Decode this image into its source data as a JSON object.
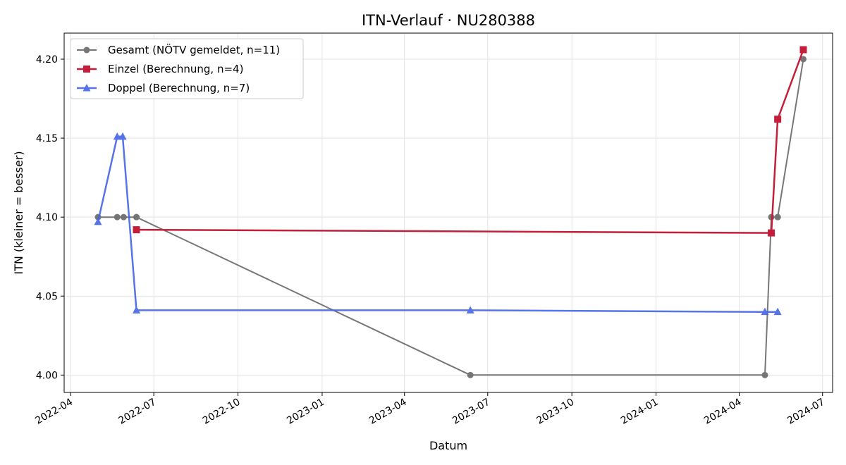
{
  "chart_data": {
    "type": "line",
    "title": "ITN-Verlauf · NU280388",
    "xlabel": "Datum",
    "ylabel": "ITN  (kleiner = besser)",
    "x_type": "date",
    "xlim": [
      "2022-03-25",
      "2024-07-12"
    ],
    "ylim": [
      3.989,
      4.2165
    ],
    "xticks": [
      "2022-04",
      "2022-07",
      "2022-10",
      "2023-01",
      "2023-04",
      "2023-07",
      "2023-10",
      "2024-01",
      "2024-04",
      "2024-07"
    ],
    "yticks": [
      "4.00",
      "4.05",
      "4.10",
      "4.15",
      "4.20"
    ],
    "grid": true,
    "legend_position": "top-left",
    "series": [
      {
        "name": "Gesamt (NÖTV gemeldet, n=11)",
        "color": "#555555",
        "marker": "circle",
        "points": [
          {
            "x": "2022-05-01",
            "y": 4.1
          },
          {
            "x": "2022-05-22",
            "y": 4.1
          },
          {
            "x": "2022-05-29",
            "y": 4.1
          },
          {
            "x": "2022-06-12",
            "y": 4.1
          },
          {
            "x": "2022-06-12",
            "y": 4.1
          },
          {
            "x": "2023-06-12",
            "y": 4.0
          },
          {
            "x": "2024-04-29",
            "y": 4.0
          },
          {
            "x": "2024-05-06",
            "y": 4.1
          },
          {
            "x": "2024-05-13",
            "y": 4.1
          },
          {
            "x": "2024-05-13",
            "y": 4.1
          },
          {
            "x": "2024-06-10",
            "y": 4.2
          }
        ]
      },
      {
        "name": "Einzel (Berechnung, n=4)",
        "color": "#c41e3a",
        "marker": "square",
        "points": [
          {
            "x": "2022-06-12",
            "y": 4.092
          },
          {
            "x": "2024-05-06",
            "y": 4.09
          },
          {
            "x": "2024-05-13",
            "y": 4.162
          },
          {
            "x": "2024-06-10",
            "y": 4.206
          }
        ]
      },
      {
        "name": "Doppel (Berechnung, n=7)",
        "color": "#4466e6",
        "marker": "triangle",
        "points": [
          {
            "x": "2022-05-01",
            "y": 4.097
          },
          {
            "x": "2022-05-22",
            "y": 4.151
          },
          {
            "x": "2022-05-28",
            "y": 4.151
          },
          {
            "x": "2022-06-12",
            "y": 4.041
          },
          {
            "x": "2023-06-12",
            "y": 4.041
          },
          {
            "x": "2024-04-29",
            "y": 4.04
          },
          {
            "x": "2024-05-13",
            "y": 4.04
          }
        ]
      }
    ]
  }
}
